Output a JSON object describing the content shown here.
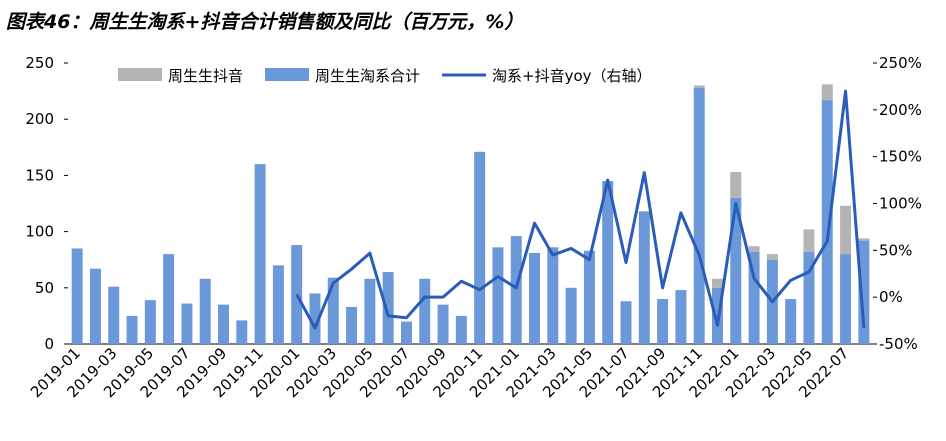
{
  "chart_data": {
    "type": "bar-line",
    "title": "图表46：周生生淘系+抖音合计销售额及同比（百万元，%）",
    "categories": [
      "2019-01",
      null,
      "2019-03",
      null,
      "2019-05",
      null,
      "2019-07",
      null,
      "2019-09",
      null,
      "2019-11",
      null,
      "2020-01",
      null,
      "2020-03",
      null,
      "2020-05",
      null,
      "2020-07",
      null,
      "2020-09",
      null,
      "2020-11",
      null,
      "2021-01",
      null,
      "2021-03",
      null,
      "2021-05",
      null,
      "2021-07",
      null,
      "2021-09",
      null,
      "2021-11",
      null,
      "2022-01",
      null,
      "2022-03",
      null,
      "2022-05",
      null,
      "2022-07",
      null
    ],
    "series": [
      {
        "name": "周生生抖音",
        "kind": "bar",
        "color": "#b4b4b4",
        "values": [
          null,
          null,
          null,
          null,
          null,
          null,
          null,
          null,
          null,
          null,
          null,
          null,
          null,
          null,
          null,
          null,
          null,
          null,
          null,
          null,
          null,
          null,
          null,
          null,
          null,
          null,
          null,
          null,
          null,
          null,
          null,
          null,
          null,
          null,
          2,
          8,
          23,
          5,
          5,
          0,
          20,
          14,
          43,
          2
        ]
      },
      {
        "name": "周生生淘系合计",
        "kind": "bar",
        "color": "#6b98d9",
        "values": [
          85,
          67,
          51,
          25,
          39,
          80,
          36,
          58,
          35,
          21,
          160,
          70,
          88,
          45,
          59,
          33,
          58,
          64,
          20,
          58,
          35,
          25,
          171,
          86,
          96,
          81,
          86,
          50,
          83,
          145,
          38,
          118,
          40,
          48,
          228,
          50,
          130,
          82,
          75,
          40,
          82,
          217,
          80,
          92
        ]
      },
      {
        "name": "淘系+抖音yoy（右轴）",
        "kind": "line",
        "axis": "y2",
        "color": "#2a5cb8",
        "values": [
          null,
          null,
          null,
          null,
          null,
          null,
          null,
          null,
          null,
          null,
          null,
          null,
          3,
          -33,
          15,
          30,
          47,
          -20,
          -22,
          0,
          0,
          17,
          8,
          22,
          10,
          79,
          45,
          52,
          40,
          125,
          37,
          133,
          10,
          90,
          45,
          -30,
          100,
          20,
          -5,
          18,
          27,
          60,
          220,
          -33
        ]
      }
    ],
    "ylim": [
      0,
      250
    ],
    "yticks": [
      0,
      50,
      100,
      150,
      200,
      250
    ],
    "y2lim": [
      -50,
      250
    ],
    "y2ticks": [
      {
        "value": -50,
        "label": "-50%"
      },
      {
        "value": 0,
        "label": "0%"
      },
      {
        "value": 50,
        "label": "50%"
      },
      {
        "value": 100,
        "label": "100%"
      },
      {
        "value": 150,
        "label": "150%"
      },
      {
        "value": 200,
        "label": "200%"
      },
      {
        "value": 250,
        "label": "250%"
      }
    ],
    "legend": "top"
  }
}
